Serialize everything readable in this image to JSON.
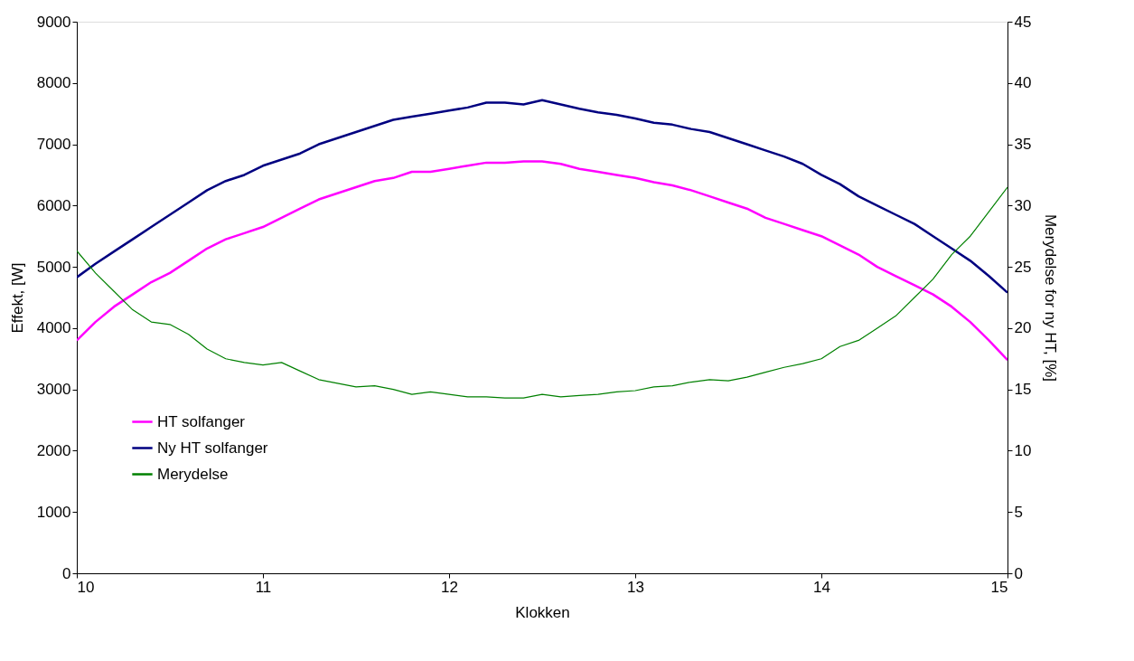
{
  "chart_data": {
    "type": "line",
    "xlabel": "Klokken",
    "ylabel": "Effekt,  [W]",
    "y2label": "Merydelse for ny HT,  [%]",
    "x": [
      10.0,
      10.1,
      10.2,
      10.3,
      10.4,
      10.5,
      10.6,
      10.7,
      10.8,
      10.9,
      11.0,
      11.1,
      11.2,
      11.3,
      11.4,
      11.5,
      11.6,
      11.7,
      11.8,
      11.9,
      12.0,
      12.1,
      12.2,
      12.3,
      12.4,
      12.5,
      12.6,
      12.7,
      12.8,
      12.9,
      13.0,
      13.1,
      13.2,
      13.3,
      13.4,
      13.5,
      13.6,
      13.7,
      13.8,
      13.9,
      14.0,
      14.1,
      14.2,
      14.3,
      14.4,
      14.5,
      14.6,
      14.7,
      14.8,
      14.9,
      15.0
    ],
    "xlim": [
      10,
      15
    ],
    "xticks": [
      10,
      11,
      12,
      13,
      14,
      15
    ],
    "ylim": [
      0,
      9000
    ],
    "yticks": [
      0,
      1000,
      2000,
      3000,
      4000,
      5000,
      6000,
      7000,
      8000,
      9000
    ],
    "y2lim": [
      0,
      45
    ],
    "y2ticks": [
      0,
      5,
      10,
      15,
      20,
      25,
      30,
      35,
      40,
      45
    ],
    "grid": false,
    "legend": "bottom left",
    "marker": "none",
    "line_style": "solid",
    "series": [
      {
        "name": "HT solfanger",
        "color": "#ff00ff",
        "values": [
          3800,
          4100,
          4350,
          4550,
          4750,
          4900,
          5100,
          5300,
          5450,
          5550,
          5650,
          5800,
          5950,
          6100,
          6200,
          6300,
          6400,
          6450,
          6550,
          6550,
          6600,
          6650,
          6700,
          6700,
          6720,
          6720,
          6680,
          6600,
          6550,
          6500,
          6450,
          6380,
          6330,
          6250,
          6150,
          6050,
          5950,
          5800,
          5700,
          5600,
          5500,
          5350,
          5200,
          5000,
          4850,
          4700,
          4550,
          4350,
          4100,
          3800,
          3480
        ]
      },
      {
        "name": "Ny HT solfanger",
        "color": "#000080",
        "values": [
          4830,
          5050,
          5250,
          5450,
          5650,
          5850,
          6050,
          6250,
          6400,
          6500,
          6650,
          6750,
          6850,
          7000,
          7100,
          7200,
          7300,
          7400,
          7450,
          7500,
          7550,
          7600,
          7680,
          7680,
          7650,
          7720,
          7650,
          7580,
          7520,
          7480,
          7420,
          7350,
          7320,
          7250,
          7200,
          7100,
          7000,
          6900,
          6800,
          6680,
          6500,
          6350,
          6150,
          6000,
          5850,
          5700,
          5500,
          5300,
          5100,
          4850,
          4580
        ]
      },
      {
        "name": "Merydelse",
        "color": "#008000",
        "axis": "y2",
        "values": [
          26.3,
          24.5,
          23.0,
          21.5,
          20.5,
          20.3,
          19.5,
          18.3,
          17.5,
          17.2,
          17.0,
          17.2,
          16.5,
          15.8,
          15.5,
          15.2,
          15.3,
          15.0,
          14.6,
          14.8,
          14.6,
          14.4,
          14.4,
          14.3,
          14.3,
          14.6,
          14.4,
          14.5,
          14.6,
          14.8,
          14.9,
          15.2,
          15.3,
          15.6,
          15.8,
          15.7,
          16.0,
          16.4,
          16.8,
          17.1,
          17.5,
          18.5,
          19.0,
          20.0,
          21.0,
          22.5,
          24.0,
          26.0,
          27.5,
          29.5,
          31.5
        ]
      }
    ]
  }
}
